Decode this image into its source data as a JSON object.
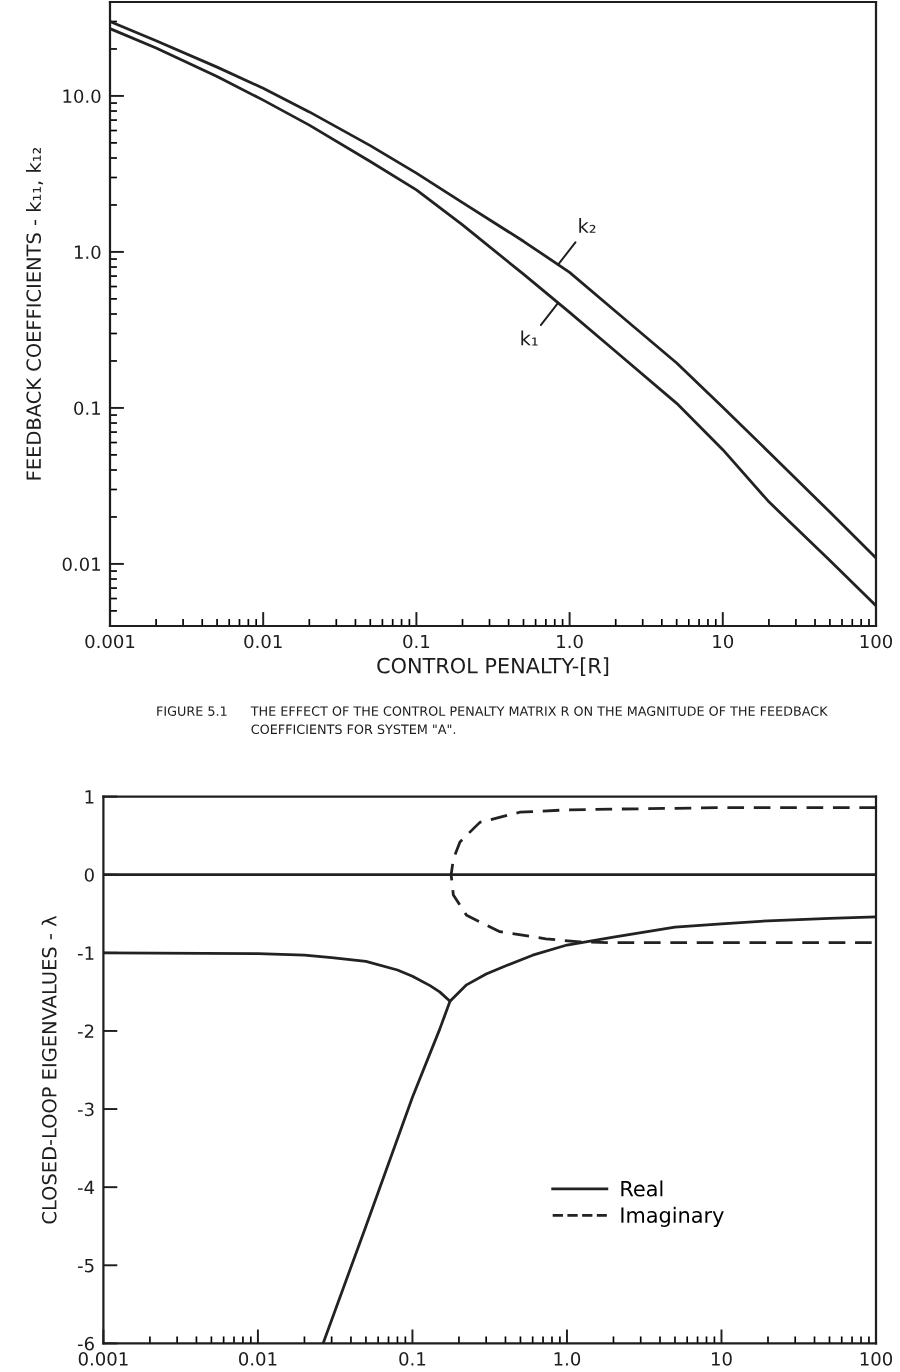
{
  "chart_data": [
    {
      "type": "line",
      "xlabel": "CONTROL PENALTY-[R]",
      "ylabel": "FEEDBACK COEFFICIENTS - k₁₁, k₁₂",
      "annotations": [
        "FIGURE 5.1",
        "THE EFFECT OF THE CONTROL PENALTY MATRIX R ON THE MAGNITUDE OF THE FEEDBACK COEFFICIENTS FOR SYSTEM \"A\"."
      ],
      "log": "xy",
      "xlim": [
        0.001,
        100
      ],
      "xticks": [
        0.001,
        0.01,
        0.1,
        {
          "value": 1,
          "label": "1.0"
        },
        10,
        100
      ],
      "ylim": [
        0.004,
        40
      ],
      "yticks": [
        0.01,
        0.1,
        {
          "value": 1,
          "label": "1.0"
        },
        {
          "value": 10,
          "label": "10.0"
        }
      ],
      "x": [
        0.001,
        0.002,
        0.005,
        0.01,
        0.02,
        0.05,
        0.1,
        0.2,
        0.5,
        1,
        2,
        5,
        10,
        20,
        50,
        100
      ],
      "series": [
        {
          "name": "k₁",
          "color": "#222222",
          "values": [
            27,
            20.3,
            13.3,
            9.4,
            6.5,
            3.8,
            2.5,
            1.49,
            0.72,
            0.41,
            0.23,
            0.107,
            0.054,
            0.025,
            0.0105,
            0.0054
          ]
        },
        {
          "name": "k₂",
          "color": "#222222",
          "values": [
            30,
            22.6,
            15.3,
            11.2,
            7.9,
            4.8,
            3.2,
            2.07,
            1.17,
            0.74,
            0.415,
            0.194,
            0.101,
            0.052,
            0.0215,
            0.0109
          ]
        }
      ]
    },
    {
      "type": "line",
      "ylabel": "CLOSED-LOOP EIGENVALUES - λ",
      "log": "x",
      "xlim": [
        0.001,
        100
      ],
      "xticks": [
        0.001,
        0.01,
        0.1,
        {
          "value": 1,
          "label": "1.0"
        },
        10,
        100
      ],
      "ylim": [
        -6,
        1
      ],
      "yticks": [
        -6,
        -5,
        -4,
        -3,
        -2,
        -1,
        0,
        1
      ],
      "legend": "bottom right",
      "ref_lines": [
        {
          "axis": "y",
          "value": 0,
          "color": "#222222",
          "line_style": "solid"
        }
      ],
      "series": [
        {
          "name": "Real",
          "color": "#222222",
          "line_style": "solid",
          "x": [
            0.001,
            0.01,
            0.02,
            0.03,
            0.05,
            0.08,
            0.1,
            0.13,
            0.15,
            0.175,
            0.224,
            0.3,
            0.41,
            0.6,
            1,
            2,
            5,
            10,
            20,
            50,
            100
          ],
          "values": [
            -1.0,
            -1.01,
            -1.03,
            -1.06,
            -1.11,
            -1.22,
            -1.3,
            -1.42,
            -1.5,
            -1.62,
            -1.41,
            -1.27,
            -1.16,
            -1.03,
            -0.9,
            -0.8,
            -0.67,
            -0.63,
            -0.59,
            -0.56,
            -0.54
          ]
        },
        {
          "color": "#222222",
          "line_style": "solid",
          "x": [
            0.0264,
            0.05,
            0.1,
            0.15,
            0.175
          ],
          "values": [
            -6,
            -4.5,
            -2.85,
            -1.98,
            -1.62
          ]
        },
        {
          "name": "Imaginary",
          "color": "#222222",
          "line_style": "dashed",
          "x": [
            100,
            50,
            20,
            10,
            5,
            2,
            1,
            0.495,
            0.273,
            0.203,
            0.184,
            0.178,
            0.184,
            0.224,
            0.368,
            0.73,
            1.21,
            2,
            5,
            10,
            20,
            50,
            100
          ],
          "values": [
            0.86,
            0.86,
            0.86,
            0.86,
            0.85,
            0.84,
            0.83,
            0.8,
            0.67,
            0.42,
            0.2,
            0,
            -0.26,
            -0.52,
            -0.73,
            -0.82,
            -0.86,
            -0.87,
            -0.87,
            -0.87,
            -0.87,
            -0.87,
            -0.87
          ]
        }
      ]
    }
  ]
}
